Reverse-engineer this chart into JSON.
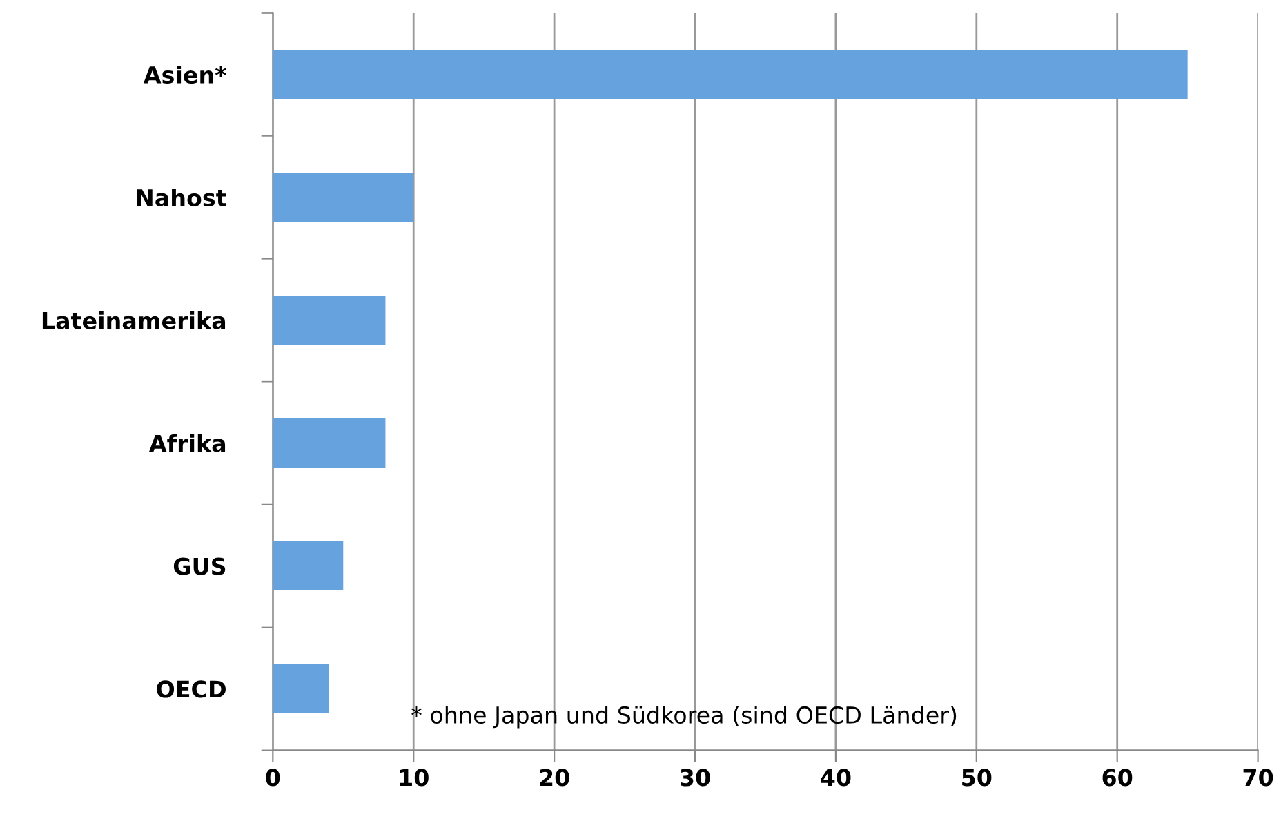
{
  "chart_data": {
    "type": "bar",
    "orientation": "horizontal",
    "categories": [
      "Asien*",
      "Nahost",
      "Lateinamerika",
      "Afrika",
      "GUS",
      "OECD"
    ],
    "values": [
      65,
      10,
      8,
      8,
      5,
      4
    ],
    "color": "#66a3de",
    "xlim": [
      0,
      70
    ],
    "xticks": [
      0,
      10,
      20,
      30,
      40,
      50,
      60,
      70
    ],
    "grid": "x",
    "annotations": [
      "* ohne Japan und Südkorea (sind OECD Länder)"
    ]
  }
}
